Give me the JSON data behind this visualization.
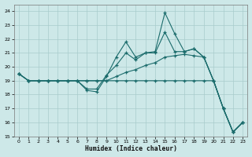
{
  "xlabel": "Humidex (Indice chaleur)",
  "background_color": "#cde8e8",
  "grid_color": "#a8cccc",
  "line_color": "#1a6b6b",
  "xlim": [
    -0.5,
    23.5
  ],
  "ylim": [
    15,
    24.5
  ],
  "yticks": [
    15,
    16,
    17,
    18,
    19,
    20,
    21,
    22,
    23,
    24
  ],
  "xticks": [
    0,
    1,
    2,
    3,
    4,
    5,
    6,
    7,
    8,
    9,
    10,
    11,
    12,
    13,
    14,
    15,
    16,
    17,
    18,
    19,
    20,
    21,
    22,
    23
  ],
  "hours": [
    0,
    1,
    2,
    3,
    4,
    5,
    6,
    7,
    8,
    9,
    10,
    11,
    12,
    13,
    14,
    15,
    16,
    17,
    18,
    19,
    20,
    21,
    22,
    23
  ],
  "line_spike": [
    19.5,
    19.0,
    19.0,
    19.0,
    19.0,
    19.0,
    19.0,
    18.3,
    18.2,
    19.3,
    20.7,
    21.8,
    20.7,
    21.0,
    21.1,
    23.9,
    22.4,
    21.1,
    21.3,
    20.7,
    19.0,
    17.0,
    15.3,
    16.0
  ],
  "line_upper": [
    19.5,
    19.0,
    19.0,
    19.0,
    19.0,
    19.0,
    19.0,
    18.4,
    18.4,
    19.4,
    20.1,
    21.0,
    20.5,
    21.0,
    21.0,
    22.5,
    21.1,
    21.1,
    21.3,
    20.7,
    19.0,
    17.0,
    15.3,
    16.0
  ],
  "line_mid": [
    19.5,
    19.0,
    19.0,
    19.0,
    19.0,
    19.0,
    19.0,
    19.0,
    19.0,
    19.0,
    19.3,
    19.6,
    19.8,
    20.1,
    20.3,
    20.7,
    20.8,
    20.9,
    20.8,
    20.7,
    19.0,
    17.0,
    15.3,
    16.0
  ],
  "line_flat": [
    19.5,
    19.0,
    19.0,
    19.0,
    19.0,
    19.0,
    19.0,
    19.0,
    19.0,
    19.0,
    19.0,
    19.0,
    19.0,
    19.0,
    19.0,
    19.0,
    19.0,
    19.0,
    19.0,
    19.0,
    19.0,
    17.0,
    15.3,
    16.0
  ]
}
